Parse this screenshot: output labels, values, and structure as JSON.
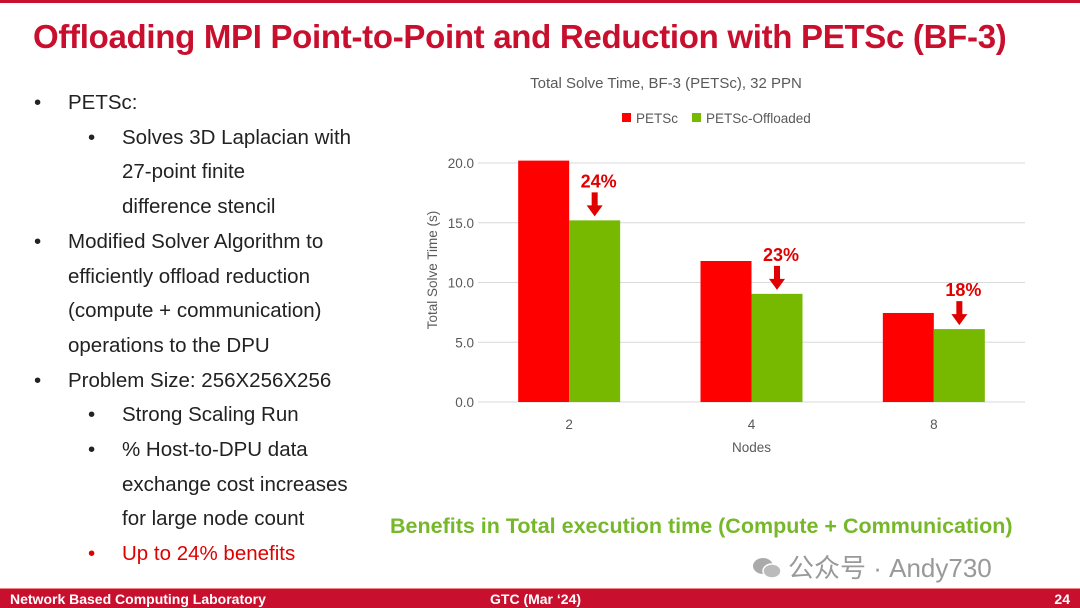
{
  "slide": {
    "title": "Offloading MPI Point-to-Point and Reduction with PETSc (BF-3)",
    "bullets": [
      {
        "level": 1,
        "text": "PETSc:"
      },
      {
        "level": 2,
        "text": "Solves 3D Laplacian with"
      },
      {
        "level": 2,
        "cont": true,
        "text": "27-point finite"
      },
      {
        "level": 2,
        "cont": true,
        "text": "difference stencil"
      },
      {
        "level": 1,
        "text": "Modified Solver Algorithm to"
      },
      {
        "level": 1,
        "cont": true,
        "text": "efficiently offload reduction"
      },
      {
        "level": 1,
        "cont": true,
        "text": "(compute + communication)"
      },
      {
        "level": 1,
        "cont": true,
        "text": "operations to the DPU"
      },
      {
        "level": 1,
        "text": "Problem Size: 256X256X256"
      },
      {
        "level": 2,
        "text": "Strong Scaling Run"
      },
      {
        "level": 2,
        "text": "% Host-to-DPU data"
      },
      {
        "level": 2,
        "cont": true,
        "text": "exchange cost increases"
      },
      {
        "level": 2,
        "cont": true,
        "text": "for large node count"
      },
      {
        "level": 2,
        "red": true,
        "text": "Up to 24% benefits"
      }
    ],
    "benefit_text": "Benefits in Total execution time (Compute + Communication)",
    "watermark": "公众号 · Andy730",
    "footer": {
      "left": "Network Based Computing Laboratory",
      "center": "GTC (Mar ‘24)",
      "page": "24"
    }
  },
  "chart_data": {
    "type": "bar",
    "title": "Total Solve Time, BF-3 (PETSc), 32 PPN",
    "xlabel": "Nodes",
    "ylabel": "Total Solve Time (s)",
    "categories": [
      "2",
      "4",
      "8"
    ],
    "series": [
      {
        "name": "PETSc",
        "color": "#ff0000",
        "values": [
          20.2,
          11.8,
          7.45
        ]
      },
      {
        "name": "PETSc-Offloaded",
        "color": "#76b900",
        "values": [
          15.2,
          9.05,
          6.1
        ]
      }
    ],
    "annotations": [
      "24%",
      "23%",
      "18%"
    ],
    "annotation_color": "#e00000",
    "ylim": [
      0,
      20
    ],
    "yticks": [
      "0.0",
      "5.0",
      "10.0",
      "15.0",
      "20.0"
    ],
    "grid": true,
    "legend": "top"
  }
}
